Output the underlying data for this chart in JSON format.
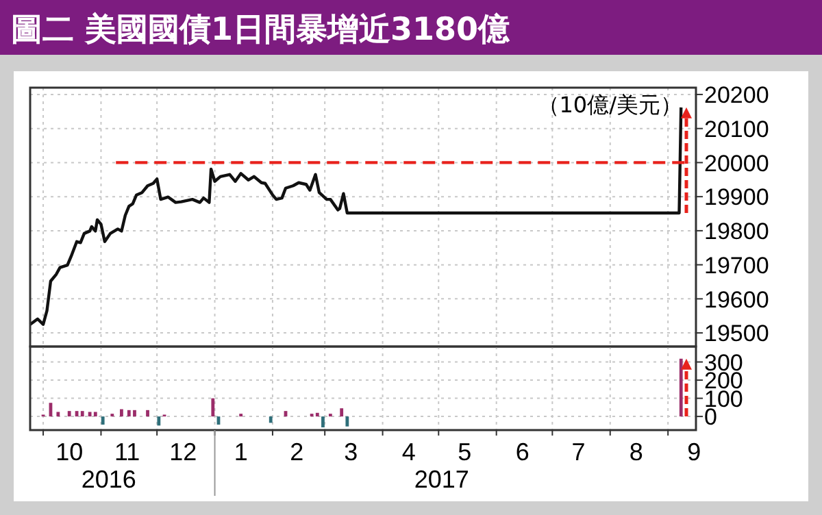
{
  "chart_data": [
    {
      "type": "line",
      "title": "圖二  美國國債1日間暴增近3180億",
      "annotations": [
        "（10億/美元）"
      ],
      "xlim": [
        "2016-09-24",
        "2017-09-16"
      ],
      "ylim": [
        19460,
        20220
      ],
      "yticks": [
        19500,
        19600,
        19700,
        19800,
        19900,
        20000,
        20100,
        20200
      ],
      "grid": true,
      "tick_labels": "y",
      "series": [
        {
          "color": "#111111",
          "line_style": "solid",
          "x": [
            "2016-09-24",
            "2016-09-28",
            "2016-10-01",
            "2016-10-03",
            "2016-10-05",
            "2016-10-08",
            "2016-10-10",
            "2016-10-14",
            "2016-10-16",
            "2016-10-19",
            "2016-10-21",
            "2016-10-23",
            "2016-10-26",
            "2016-10-27",
            "2016-10-29",
            "2016-10-30",
            "2016-11-01",
            "2016-11-03",
            "2016-11-06",
            "2016-11-10",
            "2016-11-12",
            "2016-11-14",
            "2016-11-16",
            "2016-11-18",
            "2016-11-20",
            "2016-11-23",
            "2016-11-26",
            "2016-11-29",
            "2016-12-01",
            "2016-12-03",
            "2016-12-07",
            "2016-12-11",
            "2016-12-14",
            "2016-12-20",
            "2016-12-24",
            "2016-12-26",
            "2016-12-29",
            "2016-12-30",
            "2017-01-01",
            "2017-01-04",
            "2017-01-09",
            "2017-01-12",
            "2017-01-15",
            "2017-01-19",
            "2017-01-22",
            "2017-01-26",
            "2017-01-28",
            "2017-02-01",
            "2017-02-03",
            "2017-02-06",
            "2017-02-08",
            "2017-02-12",
            "2017-02-15",
            "2017-02-19",
            "2017-02-21",
            "2017-02-24",
            "2017-02-26",
            "2017-03-02",
            "2017-03-04",
            "2017-03-08",
            "2017-03-09",
            "2017-03-11",
            "2017-03-13",
            "2017-09-07",
            "2017-09-08"
          ],
          "values": [
            19525,
            19541,
            19525,
            19565,
            19652,
            19672,
            19692,
            19699,
            19725,
            19768,
            19765,
            19792,
            19799,
            19812,
            19799,
            19832,
            19819,
            19768,
            19792,
            19805,
            19799,
            19845,
            19872,
            19879,
            19905,
            19912,
            19932,
            19939,
            19952,
            19892,
            19899,
            19883,
            19885,
            19892,
            19883,
            19896,
            19883,
            19981,
            19945,
            19959,
            19965,
            19945,
            19968,
            19949,
            19959,
            19941,
            19939,
            19905,
            19892,
            19896,
            19925,
            19932,
            19941,
            19936,
            19919,
            19965,
            19912,
            19892,
            19892,
            19861,
            19865,
            19909,
            19852,
            19852,
            20162
          ]
        },
        {
          "color": "#e8221c",
          "line_style": "dashed",
          "x": [
            "2016-11-09",
            "2017-09-12"
          ],
          "values": [
            20000,
            20000
          ]
        }
      ]
    },
    {
      "type": "bar",
      "annotations": [
        "2016",
        "2017"
      ],
      "xlim": [
        "2016-09-24",
        "2017-09-16"
      ],
      "ylim": [
        -75,
        385
      ],
      "yticks": [
        0,
        100,
        200,
        300
      ],
      "xticks": [
        {
          "value": "2016-10-15",
          "label": "10"
        },
        {
          "value": "2016-11-15",
          "label": "11"
        },
        {
          "value": "2016-12-15",
          "label": "12"
        },
        {
          "value": "2017-01-15",
          "label": "1"
        },
        {
          "value": "2017-02-14",
          "label": "2"
        },
        {
          "value": "2017-03-15",
          "label": "3"
        },
        {
          "value": "2017-04-15",
          "label": "4"
        },
        {
          "value": "2017-05-15",
          "label": "5"
        },
        {
          "value": "2017-06-15",
          "label": "6"
        },
        {
          "value": "2017-07-15",
          "label": "7"
        },
        {
          "value": "2017-08-15",
          "label": "8"
        },
        {
          "value": "2017-09-15",
          "label": "9"
        }
      ],
      "grid": true,
      "x": [
        "2016-10-01",
        "2016-10-05",
        "2016-10-09",
        "2016-10-15",
        "2016-10-19",
        "2016-10-22",
        "2016-10-26",
        "2016-10-29",
        "2016-11-02",
        "2016-11-07",
        "2016-11-12",
        "2016-11-16",
        "2016-11-19",
        "2016-11-26",
        "2016-12-02",
        "2016-12-05",
        "2016-12-31",
        "2017-01-03",
        "2017-01-15",
        "2017-01-31",
        "2017-02-08",
        "2017-02-22",
        "2017-02-25",
        "2017-02-28",
        "2017-03-04",
        "2017-03-10",
        "2017-03-13",
        "2017-09-08"
      ],
      "values": [
        10,
        75,
        25,
        30,
        30,
        30,
        25,
        25,
        -45,
        15,
        40,
        35,
        35,
        35,
        -50,
        10,
        100,
        -45,
        15,
        -35,
        30,
        15,
        20,
        -60,
        15,
        45,
        -55,
        318
      ],
      "colors": [
        "#9b2d6a",
        "#9b2d6a",
        "#9b2d6a",
        "#9b2d6a",
        "#9b2d6a",
        "#9b2d6a",
        "#9b2d6a",
        "#9b2d6a",
        "#2f6f7a",
        "#9b2d6a",
        "#9b2d6a",
        "#9b2d6a",
        "#9b2d6a",
        "#9b2d6a",
        "#2f6f7a",
        "#9b2d6a",
        "#9b2d6a",
        "#2f6f7a",
        "#9b2d6a",
        "#2f6f7a",
        "#9b2d6a",
        "#9b2d6a",
        "#9b2d6a",
        "#2f6f7a",
        "#9b2d6a",
        "#9b2d6a",
        "#2f6f7a",
        "#9b2d6a"
      ]
    }
  ]
}
